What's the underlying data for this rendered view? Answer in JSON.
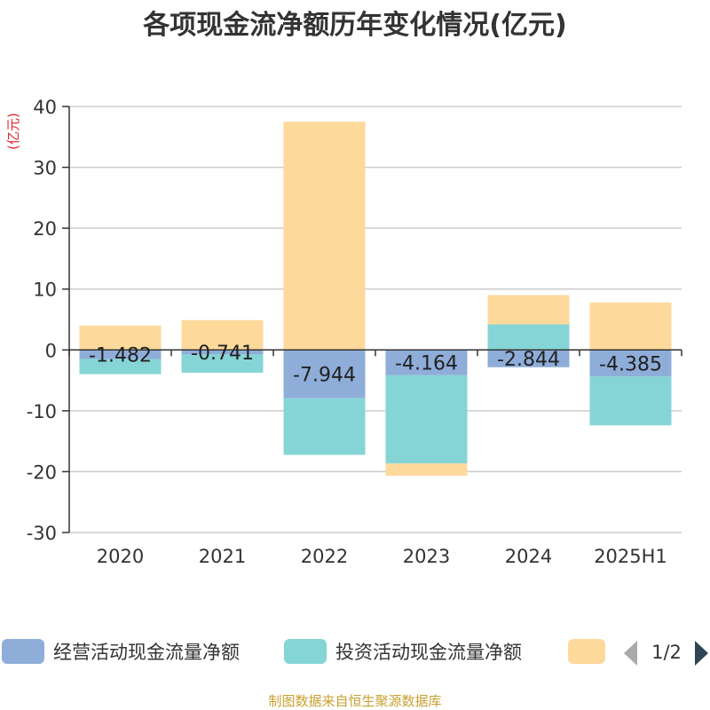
{
  "chart_data": {
    "type": "bar",
    "stacked": true,
    "title": "各项现金流净额历年变化情况(亿元)",
    "unit_label": "(亿元)",
    "categories": [
      "2020",
      "2021",
      "2022",
      "2023",
      "2024",
      "2025H1"
    ],
    "ylim": [
      -30,
      40
    ],
    "yticks": [
      40,
      30,
      20,
      10,
      0,
      -10,
      -20,
      -30
    ],
    "grid": true,
    "legend_position": "bottom",
    "series": [
      {
        "name": "经营活动现金流量净额",
        "color": "#8eadd9",
        "values": [
          -1.482,
          -0.741,
          -7.944,
          -4.164,
          -2.844,
          -4.385
        ],
        "value_labels": [
          "-1.482",
          "-0.741",
          "-7.944",
          "-4.164",
          "-2.844",
          "-4.385"
        ]
      },
      {
        "name": "投资活动现金流量净额",
        "color": "#86d5d6",
        "values": [
          -2.5,
          -3.0,
          -9.3,
          -14.5,
          4.2,
          -8.0
        ]
      },
      {
        "name": "",
        "color": "#fdd99b",
        "values": [
          4.0,
          4.9,
          37.5,
          -2.0,
          4.8,
          7.8
        ]
      }
    ],
    "legend_pager": "1/2",
    "source": "制图数据来自恒生聚源数据库"
  }
}
